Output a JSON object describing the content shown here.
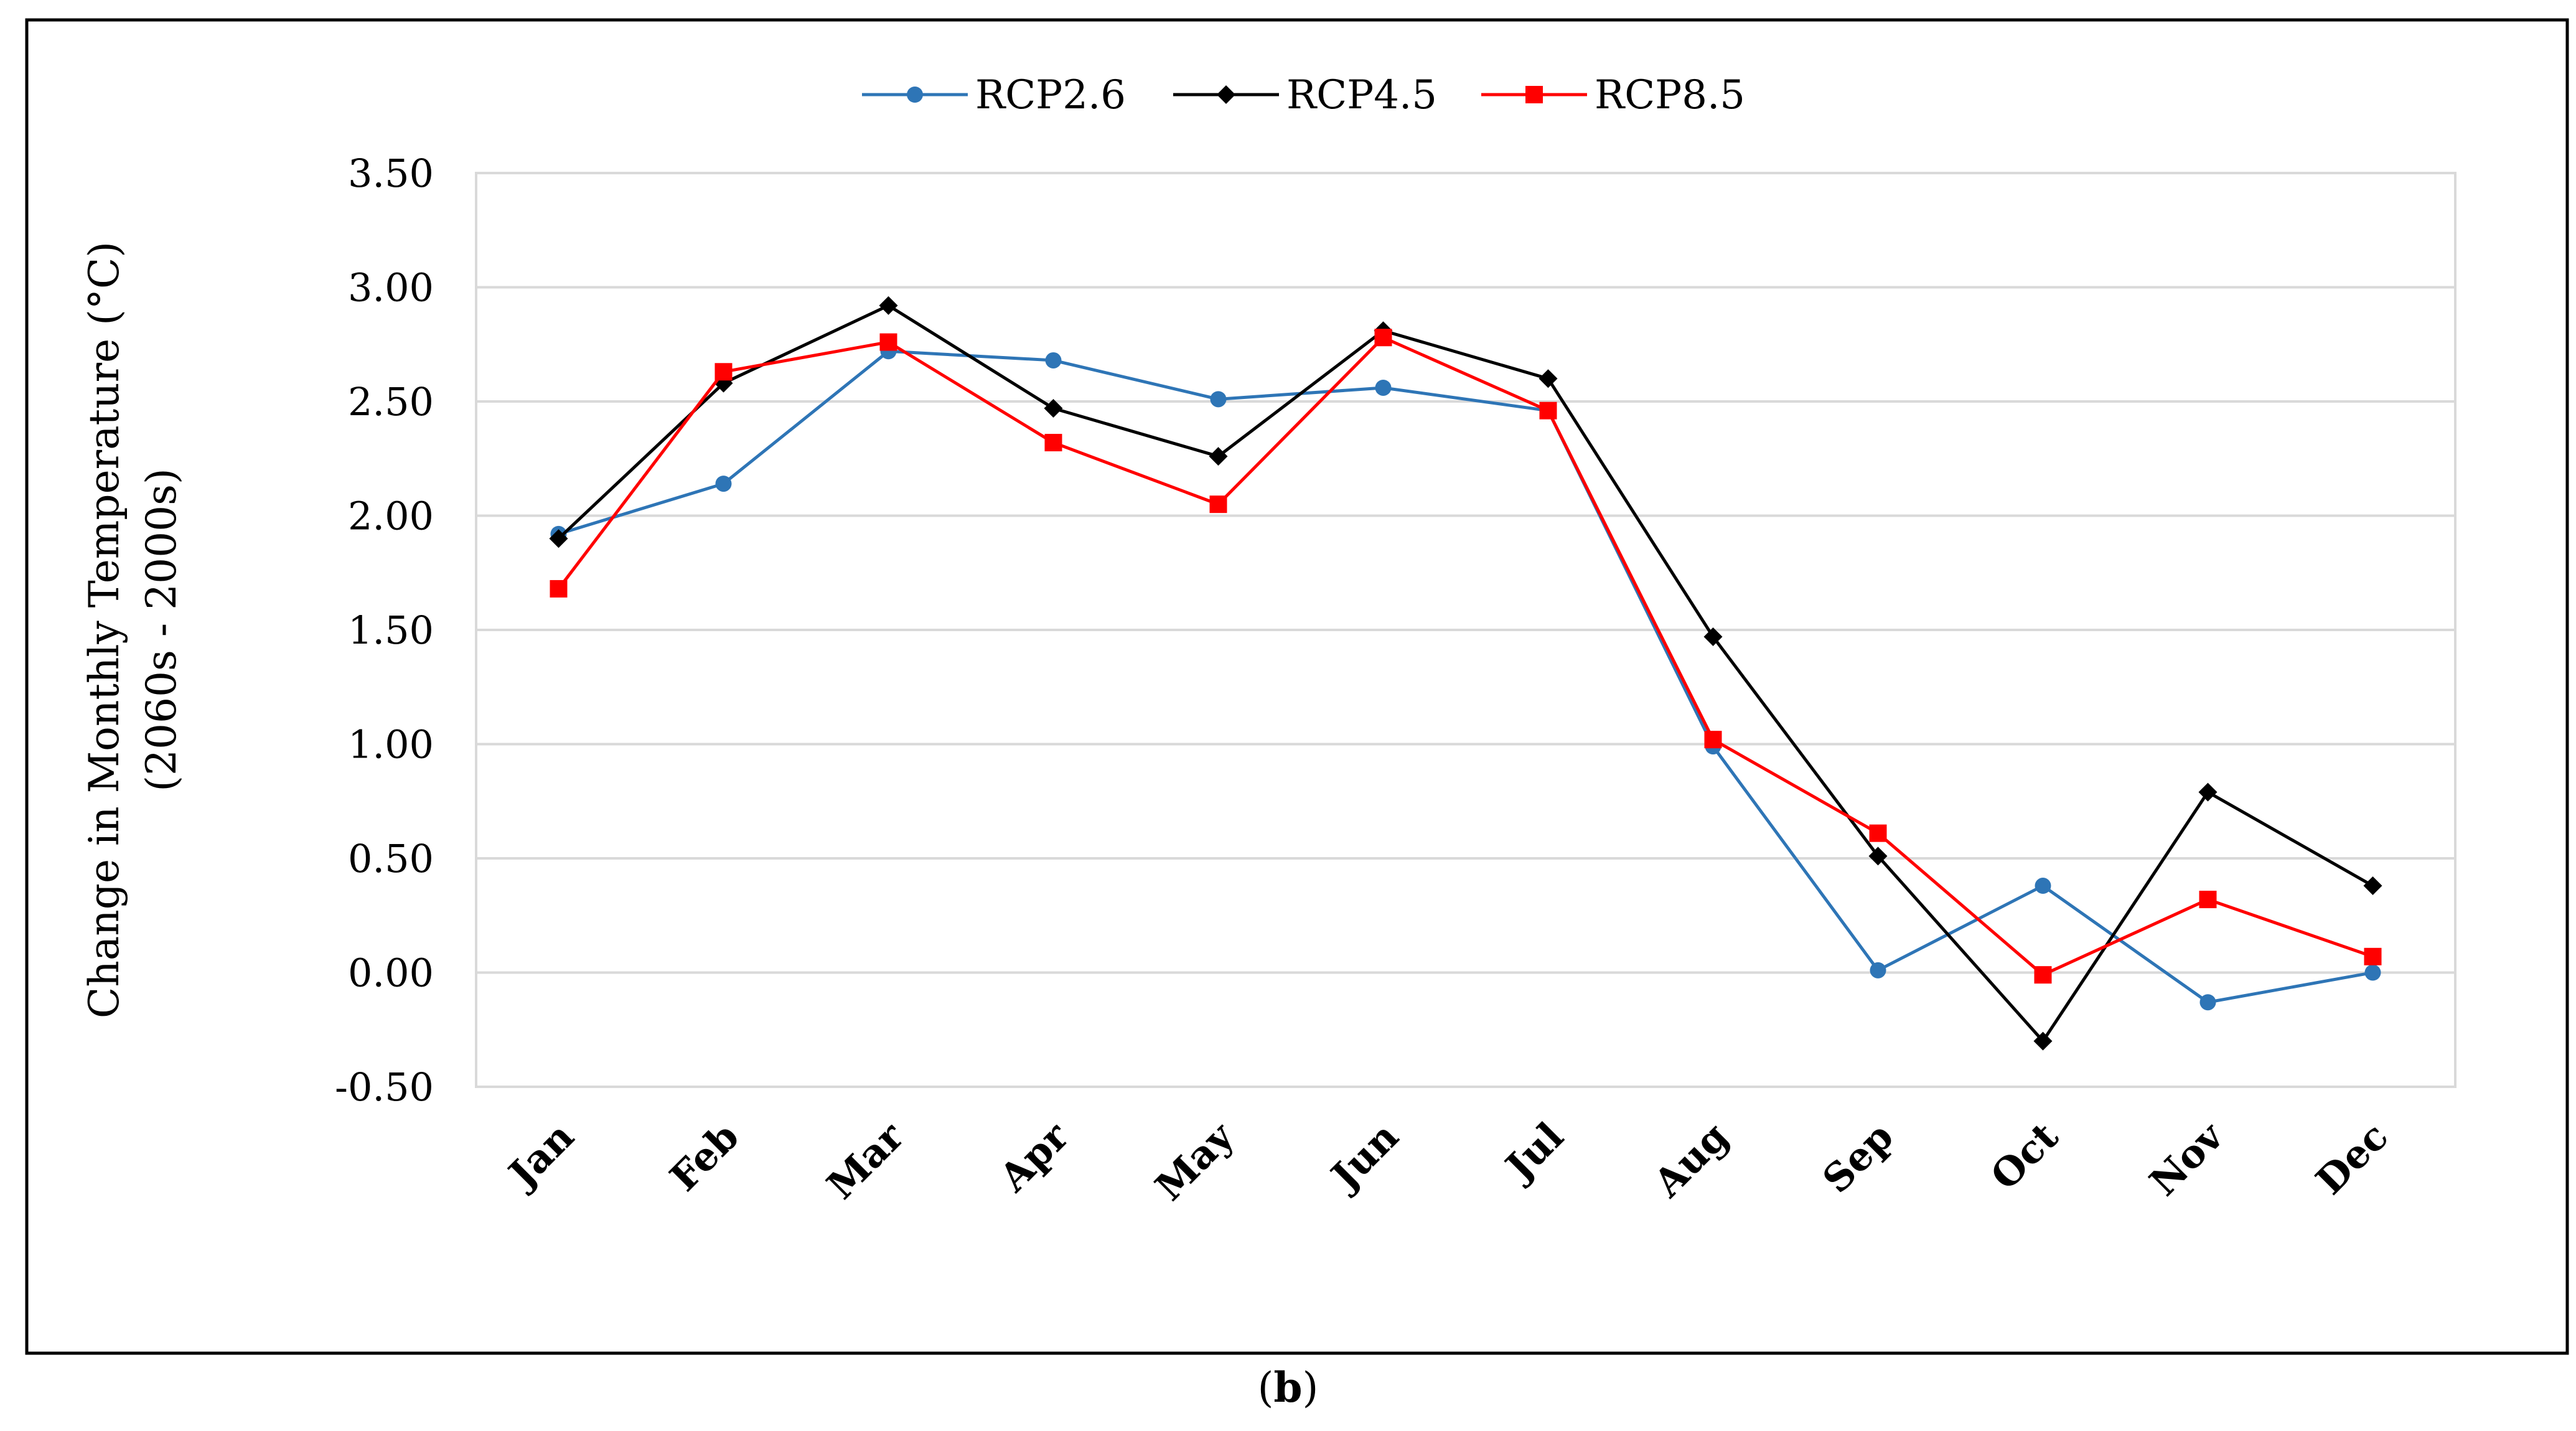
{
  "chart_data": {
    "type": "line",
    "categories": [
      "Jan",
      "Feb",
      "Mar",
      "Apr",
      "May",
      "Jun",
      "Jul",
      "Aug",
      "Sep",
      "Oct",
      "Nov",
      "Dec"
    ],
    "series": [
      {
        "name": "RCP2.6",
        "color": "#2E75B6",
        "marker": "circle",
        "values": [
          1.92,
          2.14,
          2.72,
          2.68,
          2.51,
          2.56,
          2.46,
          0.99,
          0.01,
          0.38,
          -0.13,
          0.0
        ]
      },
      {
        "name": "RCP4.5",
        "color": "#000000",
        "marker": "diamond",
        "values": [
          1.9,
          2.58,
          2.92,
          2.47,
          2.26,
          2.81,
          2.6,
          1.47,
          0.51,
          -0.3,
          0.79,
          0.38
        ]
      },
      {
        "name": "RCP8.5",
        "color": "#FF0000",
        "marker": "square",
        "values": [
          1.68,
          2.63,
          2.76,
          2.32,
          2.05,
          2.78,
          2.46,
          1.02,
          0.61,
          -0.01,
          0.32,
          0.07
        ]
      }
    ],
    "ylabel_line1": "Change in Monthly Temperature (°C)",
    "ylabel_line2": "(2060s - 2000s)",
    "xlabel": "",
    "ylim": [
      -0.5,
      3.5
    ],
    "y_ticks": [
      3.5,
      3.0,
      2.5,
      2.0,
      1.5,
      1.0,
      0.5,
      0.0,
      -0.5
    ],
    "y_tick_labels": [
      "3.50",
      "3.00",
      "2.50",
      "2.00",
      "1.50",
      "1.00",
      "0.50",
      "0.00",
      "-0.50"
    ],
    "grid": true,
    "legend_position": "top-center"
  },
  "caption": {
    "open": "(",
    "letter": "b",
    "close": ")"
  }
}
